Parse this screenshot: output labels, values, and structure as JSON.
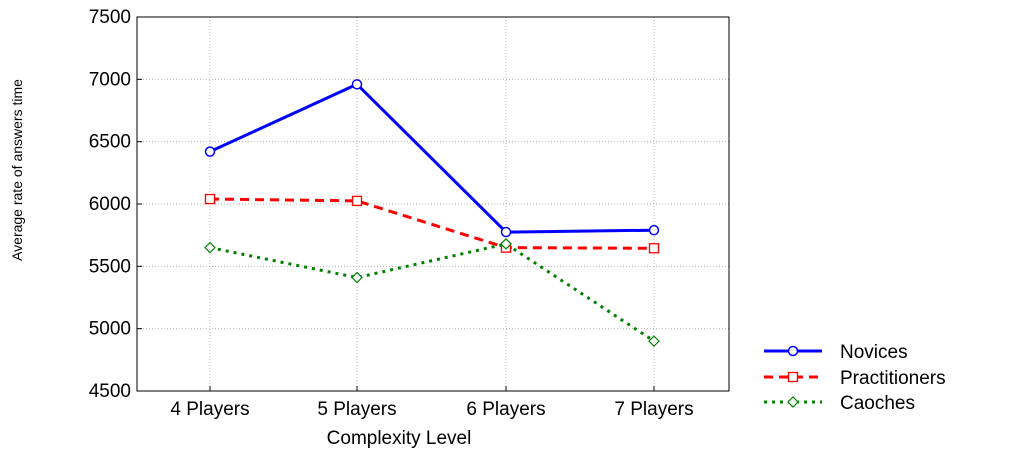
{
  "chart_data": {
    "type": "line",
    "title": "",
    "xlabel": "Complexity Level",
    "ylabel": "Average rate of answers time",
    "categories": [
      "4 Players",
      "5 Players",
      "6 Players",
      "7 Players"
    ],
    "ylim": [
      4500,
      7500
    ],
    "yticks": [
      4500,
      5000,
      5500,
      6000,
      6500,
      7000,
      7500
    ],
    "grid": true,
    "legend_position": "bottom-right",
    "series": [
      {
        "name": "Novices",
        "values": [
          6420,
          6960,
          5775,
          5790
        ],
        "color": "#0000ff",
        "line_style": "solid",
        "marker": "circle"
      },
      {
        "name": "Practitioners",
        "values": [
          6040,
          6025,
          5650,
          5645
        ],
        "color": "#ff0000",
        "line_style": "dashed",
        "marker": "square"
      },
      {
        "name": "Caoches",
        "values": [
          5650,
          5410,
          5680,
          4900
        ],
        "color": "#008000",
        "line_style": "dotted",
        "marker": "diamond"
      }
    ]
  }
}
